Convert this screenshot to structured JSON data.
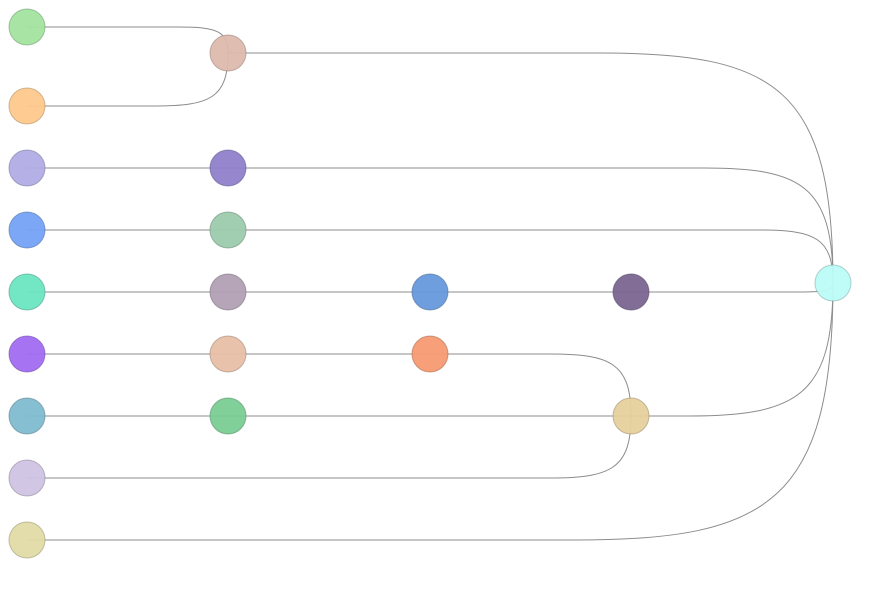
{
  "diagram": {
    "type": "tree-flow",
    "link_color": "#8c8c8c",
    "nodes": [
      {
        "id": "a1",
        "column": 0,
        "row": 0,
        "color": "#a3e4a0"
      },
      {
        "id": "a2",
        "column": 0,
        "row": 1,
        "color": "#fec98c"
      },
      {
        "id": "a3",
        "column": 0,
        "row": 2,
        "color": "#b1ade6"
      },
      {
        "id": "a4",
        "column": 0,
        "row": 3,
        "color": "#74a2f6"
      },
      {
        "id": "a5",
        "column": 0,
        "row": 4,
        "color": "#6be5c1"
      },
      {
        "id": "a6",
        "column": 0,
        "row": 5,
        "color": "#a16bf2"
      },
      {
        "id": "a7",
        "column": 0,
        "row": 6,
        "color": "#80bad0"
      },
      {
        "id": "a8",
        "column": 0,
        "row": 7,
        "color": "#cfc4e3"
      },
      {
        "id": "a9",
        "column": 0,
        "row": 8,
        "color": "#e2dba7"
      },
      {
        "id": "b1",
        "column": 1,
        "row": 0.5,
        "color": "#deb9ad"
      },
      {
        "id": "b2",
        "column": 1,
        "row": 2,
        "color": "#8f80ca"
      },
      {
        "id": "b3",
        "column": 1,
        "row": 3,
        "color": "#9ccbac"
      },
      {
        "id": "b4",
        "column": 1,
        "row": 4,
        "color": "#b29fb5"
      },
      {
        "id": "b5",
        "column": 1,
        "row": 5,
        "color": "#e8bfa6"
      },
      {
        "id": "b6",
        "column": 1,
        "row": 6,
        "color": "#7acc93"
      },
      {
        "id": "c1",
        "column": 2,
        "row": 4,
        "color": "#6799dc"
      },
      {
        "id": "c2",
        "column": 2,
        "row": 5,
        "color": "#f59a72"
      },
      {
        "id": "d1",
        "column": 3,
        "row": 4,
        "color": "#7a6590"
      },
      {
        "id": "d2",
        "column": 3,
        "row": 6,
        "color": "#e6d09c"
      },
      {
        "id": "e1",
        "column": 4,
        "row": 4.3,
        "color": "#bcfcf8"
      }
    ],
    "links": [
      [
        "a1",
        "b1"
      ],
      [
        "a2",
        "b1"
      ],
      [
        "a3",
        "b2"
      ],
      [
        "a4",
        "b3"
      ],
      [
        "a5",
        "b4"
      ],
      [
        "a6",
        "b5"
      ],
      [
        "a7",
        "b6"
      ],
      [
        "b4",
        "c1"
      ],
      [
        "b5",
        "c2"
      ],
      [
        "b6",
        "d2"
      ],
      [
        "c1",
        "d1"
      ],
      [
        "c2",
        "d2"
      ],
      [
        "a8",
        "d2"
      ],
      [
        "b1",
        "e1"
      ],
      [
        "b2",
        "e1"
      ],
      [
        "b3",
        "e1"
      ],
      [
        "d1",
        "e1"
      ],
      [
        "d2",
        "e1"
      ],
      [
        "a9",
        "e1"
      ]
    ]
  }
}
